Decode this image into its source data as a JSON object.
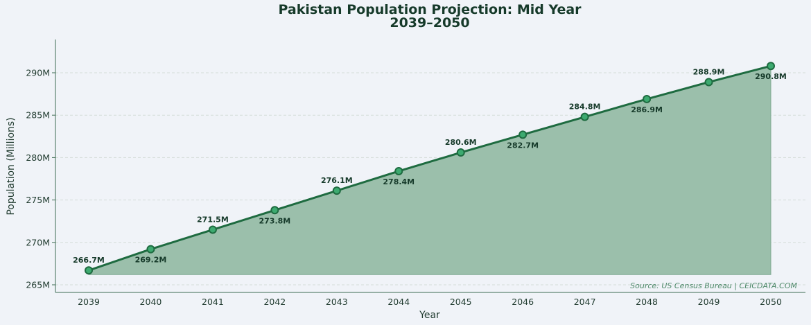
{
  "chart_data": {
    "type": "area",
    "title": "Pakistan Population Projection: Mid Year",
    "subtitle": "2039–2050",
    "xlabel": "Year",
    "ylabel": "Population (Millions)",
    "x": [
      2039,
      2040,
      2041,
      2042,
      2043,
      2044,
      2045,
      2046,
      2047,
      2048,
      2049,
      2050
    ],
    "values": [
      266.7,
      269.2,
      271.5,
      273.8,
      276.1,
      278.4,
      280.6,
      282.7,
      284.8,
      286.9,
      288.9,
      290.8
    ],
    "data_labels": [
      "266.7M",
      "269.2M",
      "271.5M",
      "273.8M",
      "276.1M",
      "278.4M",
      "280.6M",
      "282.7M",
      "284.8M",
      "286.9M",
      "288.9M",
      "290.8M"
    ],
    "yticks": [
      265,
      270,
      275,
      280,
      285,
      290
    ],
    "ytick_labels": [
      "265M",
      "270M",
      "275M",
      "280M",
      "285M",
      "290M"
    ],
    "xtick_labels": [
      "2039",
      "2040",
      "2041",
      "2042",
      "2043",
      "2044",
      "2045",
      "2046",
      "2047",
      "2048",
      "2049",
      "2050"
    ],
    "ylim": [
      264.1,
      293.9
    ],
    "grid": "horizontal dashed",
    "legend": "none",
    "source": "Source: US Census Bureau | CEICDATA.COM",
    "colors": {
      "line": "#1e6b40",
      "fill": "#9bbfab",
      "marker": "#3daa70",
      "text": "#163a2a"
    }
  }
}
